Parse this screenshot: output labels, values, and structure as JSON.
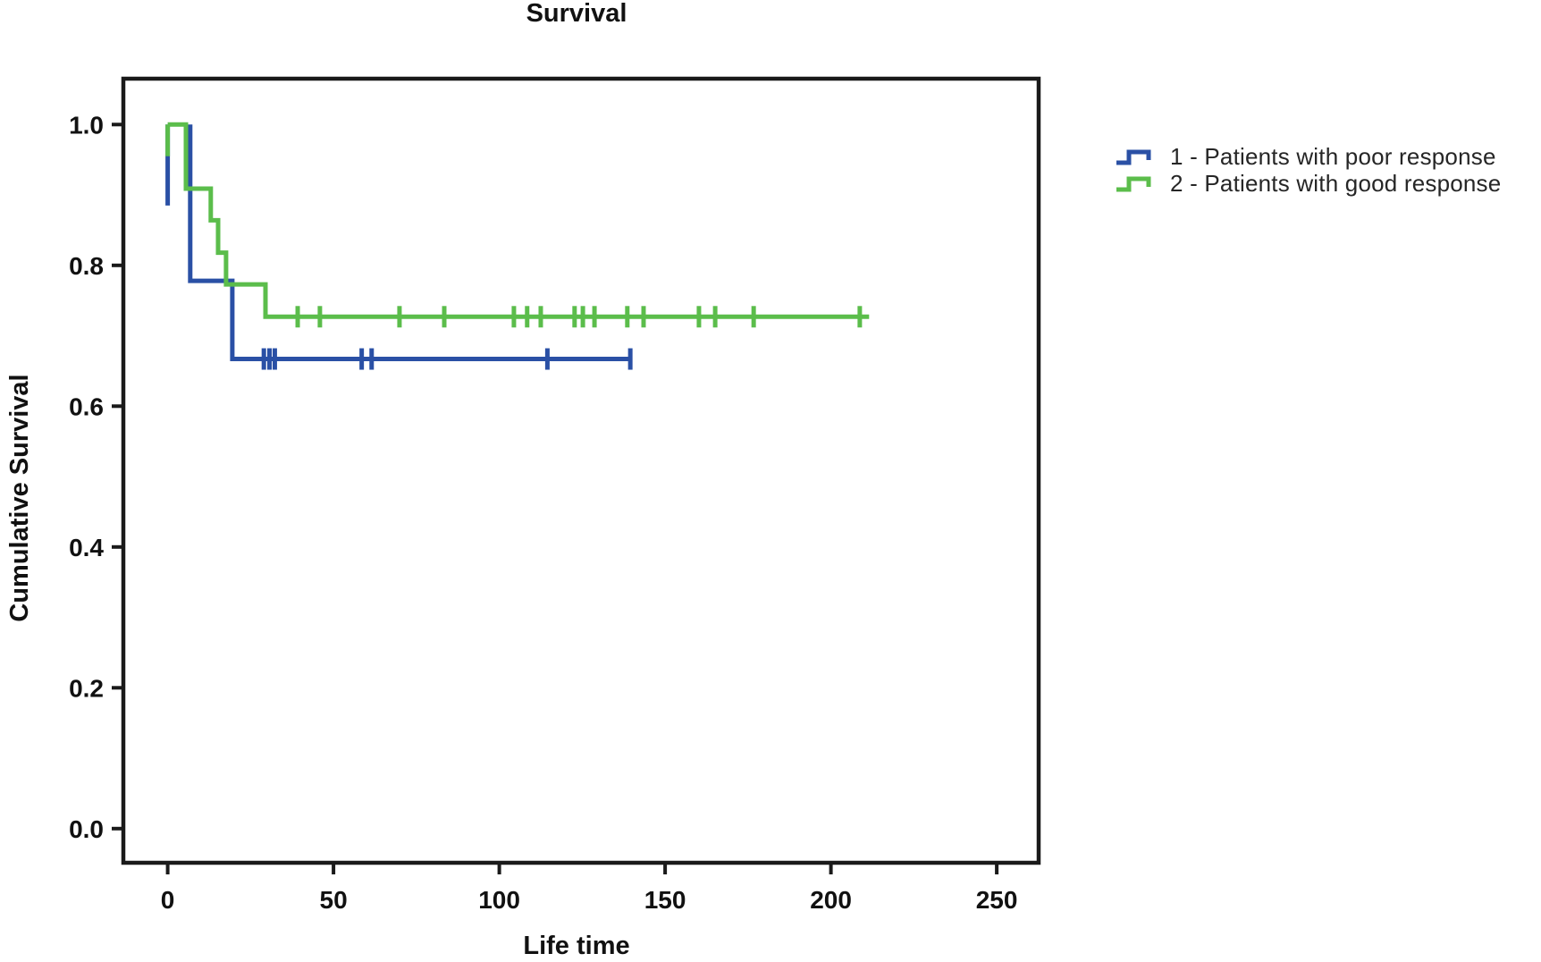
{
  "title": "Survival",
  "legend": {
    "items": [
      {
        "id": "1",
        "label": "1 - Patients with poor response",
        "color": "#2A50A5"
      },
      {
        "id": "2",
        "label": "2 - Patients with good response",
        "color": "#5BBD4B"
      }
    ]
  },
  "chart_data": {
    "type": "line",
    "subtype": "kaplan_meier_step",
    "title": "Survival",
    "xlabel": "Life time",
    "ylabel": "Cumulative Survival",
    "x_ticks": [
      0,
      50,
      100,
      150,
      200,
      250
    ],
    "y_ticks": [
      1.0,
      0.8,
      0.6,
      0.4,
      0.2,
      0.0
    ],
    "y_tick_labels": [
      "1.0",
      "0.8",
      "0.6",
      "0.4",
      "0.2",
      "0.0"
    ],
    "xlim": [
      -13,
      263
    ],
    "ylim": [
      -0.05,
      1.06
    ],
    "grid": false,
    "legend_position": "right",
    "frame": true,
    "series": [
      {
        "name": "1 - Patients with poor response",
        "color": "#2A50A5",
        "origin_drop": {
          "x": 0,
          "from": 1.0,
          "to": 0.885
        },
        "step_points": [
          [
            6.8,
            1.0
          ],
          [
            6.8,
            0.778
          ],
          [
            19.5,
            0.778
          ],
          [
            19.5,
            0.667
          ],
          [
            140,
            0.667
          ]
        ],
        "censored": [
          [
            29,
            0.667
          ],
          [
            30.7,
            0.667
          ],
          [
            32.3,
            0.667
          ],
          [
            58.5,
            0.667
          ],
          [
            61.5,
            0.667
          ],
          [
            114.5,
            0.667
          ],
          [
            139.5,
            0.667
          ]
        ]
      },
      {
        "name": "2 - Patients with good response",
        "color": "#5BBD4B",
        "origin_drop": {
          "x": 0,
          "from": 1.0,
          "to": 0.955
        },
        "step_points": [
          [
            0,
            1.0
          ],
          [
            5.5,
            1.0
          ],
          [
            5.5,
            0.909
          ],
          [
            13,
            0.909
          ],
          [
            13,
            0.864
          ],
          [
            15.2,
            0.864
          ],
          [
            15.2,
            0.818
          ],
          [
            17.6,
            0.818
          ],
          [
            17.6,
            0.773
          ],
          [
            29.5,
            0.773
          ],
          [
            29.5,
            0.727
          ],
          [
            211.5,
            0.727
          ]
        ],
        "censored": [
          [
            39.2,
            0.727
          ],
          [
            45.9,
            0.727
          ],
          [
            69.9,
            0.727
          ],
          [
            83.4,
            0.727
          ],
          [
            104.4,
            0.727
          ],
          [
            108.4,
            0.727
          ],
          [
            112.5,
            0.727
          ],
          [
            122.7,
            0.727
          ],
          [
            125.2,
            0.727
          ],
          [
            128.7,
            0.727
          ],
          [
            138.6,
            0.727
          ],
          [
            143.5,
            0.727
          ],
          [
            160.2,
            0.727
          ],
          [
            165.1,
            0.727
          ],
          [
            176.7,
            0.727
          ],
          [
            208.7,
            0.727
          ]
        ]
      }
    ]
  }
}
